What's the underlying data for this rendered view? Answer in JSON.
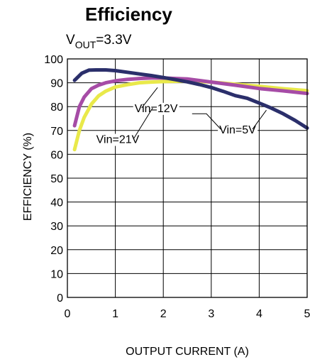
{
  "chart_data": {
    "type": "line",
    "title": "Efficiency",
    "subtitle": {
      "main": "V",
      "sub": "OUT",
      "rest": "=3.3V"
    },
    "xlabel": "OUTPUT CURRENT (A)",
    "ylabel": "EFFICIENCY (%)",
    "xlim": [
      0,
      5
    ],
    "ylim": [
      0,
      100
    ],
    "xticks": [
      "0",
      "1",
      "2",
      "3",
      "4",
      "5"
    ],
    "yticks": [
      "0",
      "10",
      "20",
      "30",
      "40",
      "50",
      "60",
      "70",
      "80",
      "90",
      "100"
    ],
    "grid": true,
    "series": [
      {
        "name": "Vin=5V",
        "color": "#2b2f6b",
        "x": [
          0.15,
          0.3,
          0.45,
          0.6,
          0.8,
          1.0,
          1.25,
          1.5,
          1.75,
          2.0,
          2.25,
          2.5,
          2.75,
          3.0,
          3.25,
          3.5,
          3.75,
          4.0,
          4.25,
          4.5,
          4.75,
          5.0
        ],
        "y": [
          91,
          94,
          95.3,
          95.4,
          95.4,
          95.1,
          94.4,
          93.7,
          93.0,
          92.2,
          91.3,
          90.4,
          89.3,
          88.0,
          86.4,
          84.6,
          83.5,
          81.5,
          79.4,
          77.0,
          74.2,
          71.0
        ]
      },
      {
        "name": "Vin=12V",
        "color": "#a64ca6",
        "x": [
          0.15,
          0.25,
          0.35,
          0.5,
          0.65,
          0.8,
          1.0,
          1.25,
          1.5,
          1.75,
          2.0,
          2.5,
          3.0,
          3.5,
          4.0,
          4.5,
          5.0
        ],
        "y": [
          72,
          80,
          84,
          87.5,
          89.0,
          90.0,
          90.8,
          91.4,
          91.8,
          92.0,
          92.0,
          91.6,
          90.3,
          89.0,
          87.6,
          86.6,
          85.5
        ]
      },
      {
        "name": "Vin=21V",
        "color": "#e9e94a",
        "x": [
          0.15,
          0.25,
          0.35,
          0.5,
          0.65,
          0.8,
          1.0,
          1.25,
          1.5,
          1.75,
          2.0,
          2.5,
          3.0,
          3.5,
          4.0,
          4.5,
          5.0
        ],
        "y": [
          62,
          70,
          75.5,
          81,
          84.5,
          86.5,
          88.2,
          89.2,
          90.0,
          90.3,
          90.5,
          90.7,
          90.3,
          89.4,
          88.5,
          87.5,
          86.7
        ]
      }
    ],
    "annotations": [
      {
        "text": "Vin=12V",
        "x": 1.85,
        "y": 79.5
      },
      {
        "text": "Vin=21V",
        "x": 1.05,
        "y": 66.5
      },
      {
        "text": "Vin=5V",
        "x": 3.55,
        "y": 70.5
      }
    ]
  }
}
